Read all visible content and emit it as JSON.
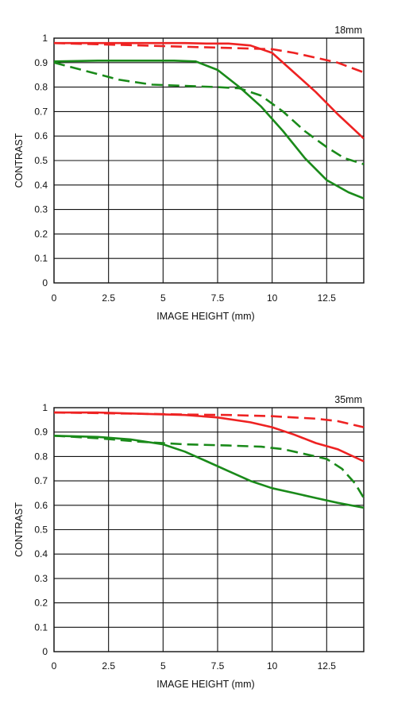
{
  "colors": {
    "sagittal_color": "#ee2222",
    "meridional_color": "#1a8a1a",
    "grid": "#111111"
  },
  "chart_data": [
    {
      "type": "line",
      "title": "18mm",
      "xlabel": "IMAGE HEIGHT (mm)",
      "ylabel": "CONTRAST",
      "xlim": [
        0,
        14.2
      ],
      "ylim": [
        0,
        1
      ],
      "x_ticks": [
        0,
        2.5,
        5,
        7.5,
        10,
        12.5
      ],
      "x_tick_labels": [
        "0",
        "2.5",
        "5",
        "7.5",
        "10",
        "12.5"
      ],
      "y_ticks": [
        0,
        0.1,
        0.2,
        0.3,
        0.4,
        0.5,
        0.6,
        0.7,
        0.8,
        0.9,
        1
      ],
      "y_tick_labels": [
        "0",
        "0.1",
        "0.2",
        "0.3",
        "0.4",
        "0.5",
        "0.6",
        "0.7",
        "0.8",
        "0.9",
        "1"
      ],
      "grid": true,
      "series": [
        {
          "color": "#ee2222",
          "dash": "solid",
          "x": [
            0,
            2,
            4,
            6,
            7,
            8,
            9,
            10,
            11,
            12,
            13,
            14.2
          ],
          "y": [
            0.98,
            0.98,
            0.98,
            0.98,
            0.978,
            0.978,
            0.97,
            0.94,
            0.86,
            0.78,
            0.69,
            0.59
          ]
        },
        {
          "color": "#ee2222",
          "dash": "dashed",
          "x": [
            0,
            2,
            4,
            6,
            8,
            10,
            11,
            12,
            13,
            14.2
          ],
          "y": [
            0.98,
            0.975,
            0.97,
            0.965,
            0.96,
            0.955,
            0.94,
            0.92,
            0.9,
            0.86
          ]
        },
        {
          "color": "#1a8a1a",
          "dash": "solid",
          "x": [
            0,
            2,
            4,
            5.5,
            6.5,
            7.5,
            8.5,
            9.5,
            10.5,
            11.5,
            12.5,
            13.5,
            14.2
          ],
          "y": [
            0.905,
            0.908,
            0.908,
            0.908,
            0.905,
            0.87,
            0.8,
            0.72,
            0.62,
            0.51,
            0.42,
            0.37,
            0.345
          ]
        },
        {
          "color": "#1a8a1a",
          "dash": "dashed",
          "x": [
            0,
            1.5,
            3,
            4.5,
            6,
            7.5,
            8.5,
            9.5,
            10.5,
            11.5,
            12.5,
            13.3,
            14.2
          ],
          "y": [
            0.9,
            0.865,
            0.83,
            0.81,
            0.805,
            0.8,
            0.795,
            0.765,
            0.7,
            0.62,
            0.555,
            0.51,
            0.485
          ]
        }
      ]
    },
    {
      "type": "line",
      "title": "35mm",
      "xlabel": "IMAGE HEIGHT (mm)",
      "ylabel": "CONTRAST",
      "xlim": [
        0,
        14.2
      ],
      "ylim": [
        0,
        1
      ],
      "x_ticks": [
        0,
        2.5,
        5,
        7.5,
        10,
        12.5
      ],
      "x_tick_labels": [
        "0",
        "2.5",
        "5",
        "7.5",
        "10",
        "12.5"
      ],
      "y_ticks": [
        0,
        0.1,
        0.2,
        0.3,
        0.4,
        0.5,
        0.6,
        0.7,
        0.8,
        0.9,
        1
      ],
      "y_tick_labels": [
        "0",
        "0.1",
        "0.2",
        "0.3",
        "0.4",
        "0.5",
        "0.6",
        "0.7",
        "0.8",
        "0.9",
        "1"
      ],
      "grid": true,
      "series": [
        {
          "color": "#ee2222",
          "dash": "solid",
          "x": [
            0,
            2,
            4,
            6,
            7.5,
            9,
            10,
            11,
            12,
            13,
            14.2
          ],
          "y": [
            0.98,
            0.98,
            0.975,
            0.97,
            0.96,
            0.94,
            0.92,
            0.89,
            0.855,
            0.83,
            0.78
          ]
        },
        {
          "color": "#ee2222",
          "dash": "dashed",
          "x": [
            0,
            2,
            4,
            6,
            8,
            10,
            11,
            12,
            13,
            14.2
          ],
          "y": [
            0.98,
            0.978,
            0.975,
            0.972,
            0.97,
            0.965,
            0.96,
            0.955,
            0.945,
            0.92
          ]
        },
        {
          "color": "#1a8a1a",
          "dash": "solid",
          "x": [
            0,
            2,
            3.5,
            5,
            6,
            7,
            8,
            9,
            10,
            11,
            12,
            13,
            14.2
          ],
          "y": [
            0.885,
            0.88,
            0.87,
            0.85,
            0.82,
            0.78,
            0.74,
            0.7,
            0.67,
            0.65,
            0.63,
            0.61,
            0.59
          ]
        },
        {
          "color": "#1a8a1a",
          "dash": "dashed",
          "x": [
            0,
            2,
            4,
            6,
            8,
            9.5,
            10.5,
            11.5,
            12.5,
            13.2,
            13.8,
            14.2
          ],
          "y": [
            0.885,
            0.875,
            0.86,
            0.85,
            0.845,
            0.84,
            0.83,
            0.81,
            0.79,
            0.75,
            0.69,
            0.63
          ]
        }
      ]
    }
  ]
}
